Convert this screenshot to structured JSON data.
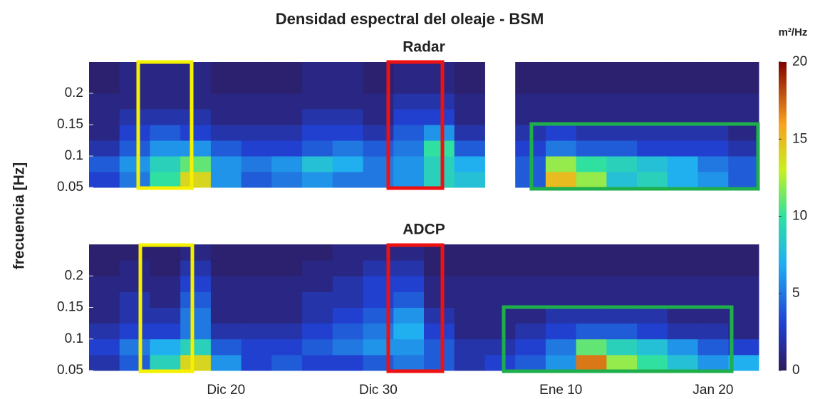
{
  "figure": {
    "title": "Densidad espectral del oleaje - BSM",
    "ylabel": "frecuencia [Hz]",
    "colorbar": {
      "label": "m²/Hz",
      "colormap": "jet",
      "clim": [
        0,
        20
      ],
      "ticks": [
        0,
        5,
        10,
        15,
        20
      ]
    }
  },
  "chart_data": [
    {
      "type": "heatmap",
      "title": "Radar",
      "ylim": [
        0.05,
        0.25
      ],
      "yticks": [
        0.05,
        0.1,
        0.15,
        0.2
      ],
      "ybins": [
        0.05,
        0.075,
        0.1,
        0.125,
        0.15,
        0.175,
        0.2,
        0.225,
        0.25
      ],
      "values": [
        [
          3,
          5,
          10,
          14,
          6,
          4,
          5,
          6,
          5,
          5,
          6,
          9,
          8,
          null,
          4,
          15,
          12,
          8,
          9,
          7,
          6,
          4
        ],
        [
          4,
          6,
          9,
          11,
          6,
          5,
          6,
          8,
          7,
          5,
          6,
          9,
          7,
          null,
          4,
          12,
          10,
          9,
          8,
          7,
          5,
          4
        ],
        [
          2,
          4,
          6,
          6,
          4,
          3,
          3,
          4,
          5,
          4,
          5,
          10,
          4,
          null,
          3,
          5,
          4,
          4,
          3,
          3,
          3,
          2
        ],
        [
          1,
          3,
          4,
          3,
          2,
          2,
          2,
          3,
          3,
          2,
          4,
          6,
          2,
          null,
          2,
          3,
          2,
          2,
          2,
          2,
          2,
          1
        ],
        [
          1,
          2,
          2,
          2,
          1,
          1,
          1,
          2,
          2,
          1,
          3,
          3,
          1,
          null,
          1,
          1,
          1,
          1,
          1,
          1,
          1,
          1
        ],
        [
          1,
          1,
          1,
          1,
          1,
          1,
          1,
          1,
          1,
          1,
          2,
          2,
          1,
          null,
          1,
          1,
          1,
          1,
          1,
          1,
          1,
          1
        ],
        [
          0.5,
          1,
          1,
          1,
          0.5,
          0.5,
          0.5,
          1,
          1,
          0.5,
          1,
          1,
          0.5,
          null,
          0.5,
          0.5,
          0.5,
          0.5,
          0.5,
          0.5,
          0.5,
          0.5
        ],
        [
          0.5,
          1,
          1,
          1,
          0.5,
          0.5,
          0.5,
          1,
          1,
          0.5,
          1,
          1,
          0.5,
          null,
          0.5,
          0.5,
          0.5,
          0.5,
          0.5,
          0.5,
          0.5,
          0.5
        ]
      ]
    },
    {
      "type": "heatmap",
      "title": "ADCP",
      "ylim": [
        0.05,
        0.25
      ],
      "yticks": [
        0.05,
        0.1,
        0.15,
        0.2
      ],
      "ybins": [
        0.05,
        0.075,
        0.1,
        0.125,
        0.15,
        0.175,
        0.2,
        0.225,
        0.25
      ],
      "categories": [
        null,
        null,
        null,
        null,
        "Dic 20",
        null,
        null,
        null,
        null,
        "Dic 30",
        null,
        null,
        null,
        null,
        null,
        "Ene 10",
        null,
        null,
        null,
        null,
        "Jan 20",
        null
      ],
      "values": [
        [
          2,
          4,
          9,
          14,
          6,
          3,
          4,
          3,
          3,
          4,
          5,
          4,
          2,
          3,
          4,
          6,
          17,
          12,
          10,
          8,
          6,
          7
        ],
        [
          3,
          5,
          7,
          9,
          4,
          3,
          3,
          4,
          5,
          6,
          6,
          4,
          2,
          2,
          3,
          5,
          11,
          9,
          8,
          6,
          4,
          3
        ],
        [
          2,
          3,
          3,
          5,
          2,
          2,
          2,
          3,
          4,
          5,
          7,
          3,
          1,
          1,
          2,
          3,
          4,
          4,
          3,
          2,
          2,
          1
        ],
        [
          1,
          2,
          2,
          5,
          1,
          1,
          1,
          2,
          3,
          4,
          6,
          2,
          1,
          1,
          1,
          2,
          2,
          2,
          2,
          1,
          1,
          1
        ],
        [
          1,
          2,
          1,
          4,
          1,
          1,
          1,
          2,
          2,
          3,
          4,
          1,
          1,
          1,
          1,
          1,
          1,
          1,
          1,
          1,
          1,
          1
        ],
        [
          1,
          1,
          1,
          3,
          1,
          1,
          1,
          1,
          2,
          3,
          3,
          1,
          1,
          1,
          1,
          1,
          1,
          1,
          1,
          1,
          1,
          1
        ],
        [
          0.5,
          1,
          0.5,
          2,
          0.5,
          0.5,
          0.5,
          1,
          1,
          2,
          2,
          0.5,
          0.5,
          0.5,
          0.5,
          0.5,
          0.5,
          0.5,
          0.5,
          0.5,
          0.5,
          0.5
        ],
        [
          0.5,
          0.5,
          0.5,
          1,
          0.5,
          0.5,
          0.5,
          0.5,
          1,
          1,
          1,
          0.5,
          0.5,
          0.5,
          0.5,
          0.5,
          0.5,
          0.5,
          0.5,
          0.5,
          0.5,
          0.5
        ]
      ]
    }
  ]
}
